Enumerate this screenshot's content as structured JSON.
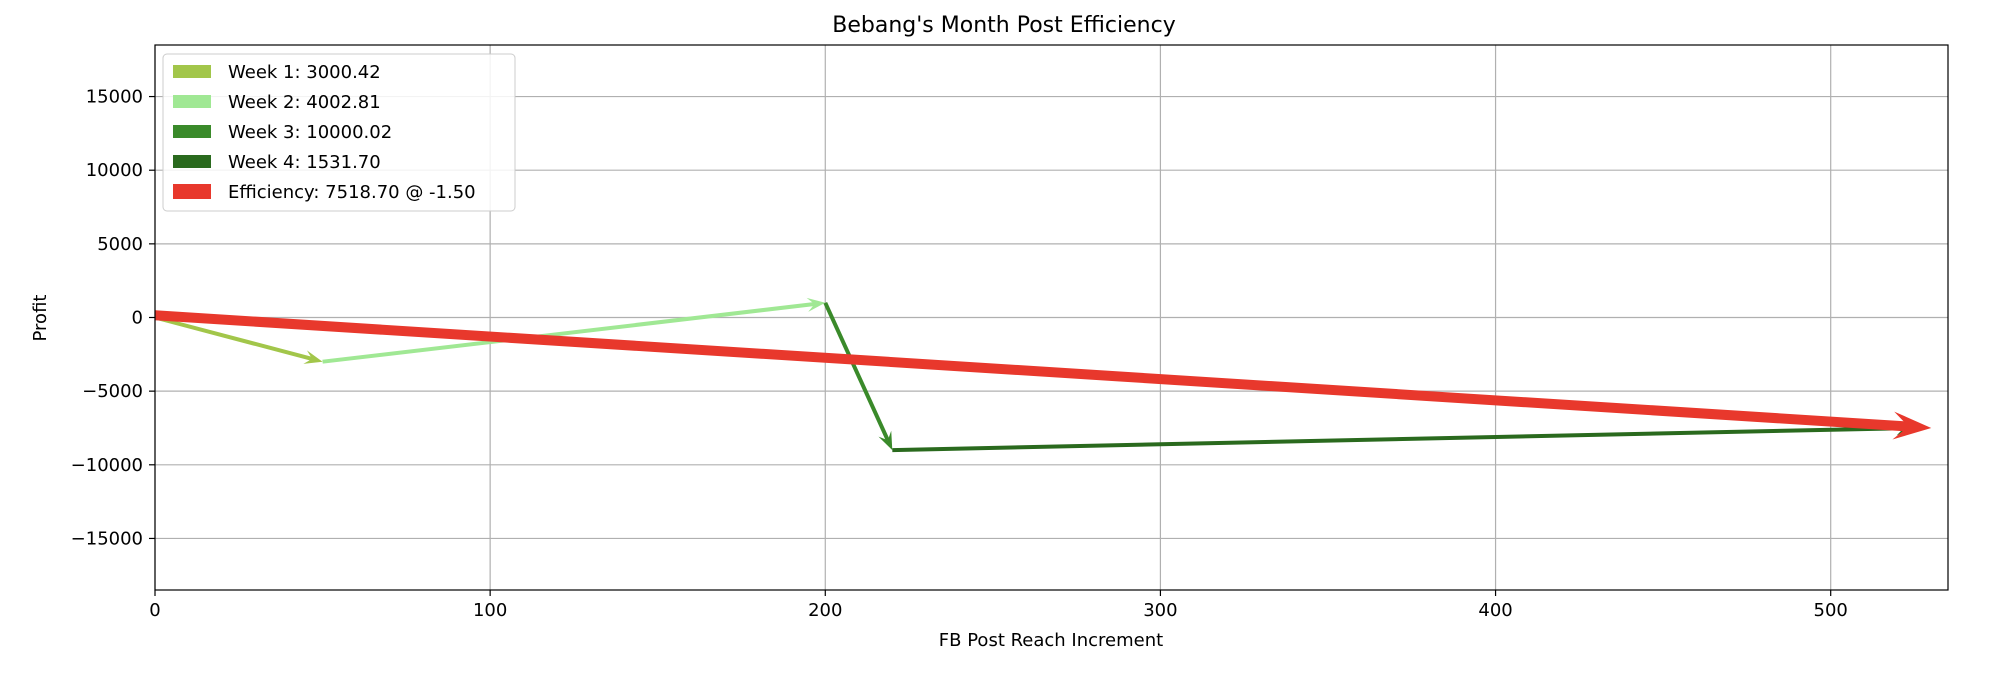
{
  "chart_data": {
    "type": "line",
    "title": "Bebang's Month Post Efficiency",
    "xlabel": "FB Post Reach Increment",
    "ylabel": "Profit",
    "xlim": [
      0,
      535
    ],
    "ylim": [
      -18500,
      18500
    ],
    "x_ticks": [
      0,
      100,
      200,
      300,
      400,
      500
    ],
    "y_ticks": [
      15000,
      10000,
      5000,
      0,
      -5000,
      -10000,
      -15000
    ],
    "x_tick_labels": [
      "0",
      "100",
      "200",
      "300",
      "400",
      "500"
    ],
    "y_tick_labels": [
      "15000",
      "10000",
      "5000",
      "0",
      "−5000",
      "−10000",
      "−15000"
    ],
    "grid": true,
    "legend_position": "top-left",
    "series": [
      {
        "name": "Week 1: 3000.42",
        "color": "#a2c64a",
        "x": [
          0,
          50
        ],
        "y": [
          0,
          -3000
        ]
      },
      {
        "name": "Week 2: 4002.81",
        "color": "#a0e894",
        "x": [
          50,
          200
        ],
        "y": [
          -3000,
          1000
        ]
      },
      {
        "name": "Week 3: 10000.02",
        "color": "#3a8a2a",
        "x": [
          200,
          220
        ],
        "y": [
          1000,
          -9000
        ]
      },
      {
        "name": "Week 4: 1531.70",
        "color": "#2a6a1e",
        "x": [
          220,
          525
        ],
        "y": [
          -9000,
          -7500
        ]
      },
      {
        "name": "Efficiency: 7518.70 @ -1.50",
        "color": "#e8382c",
        "x": [
          0,
          530
        ],
        "y": [
          150,
          -7500
        ]
      }
    ]
  }
}
